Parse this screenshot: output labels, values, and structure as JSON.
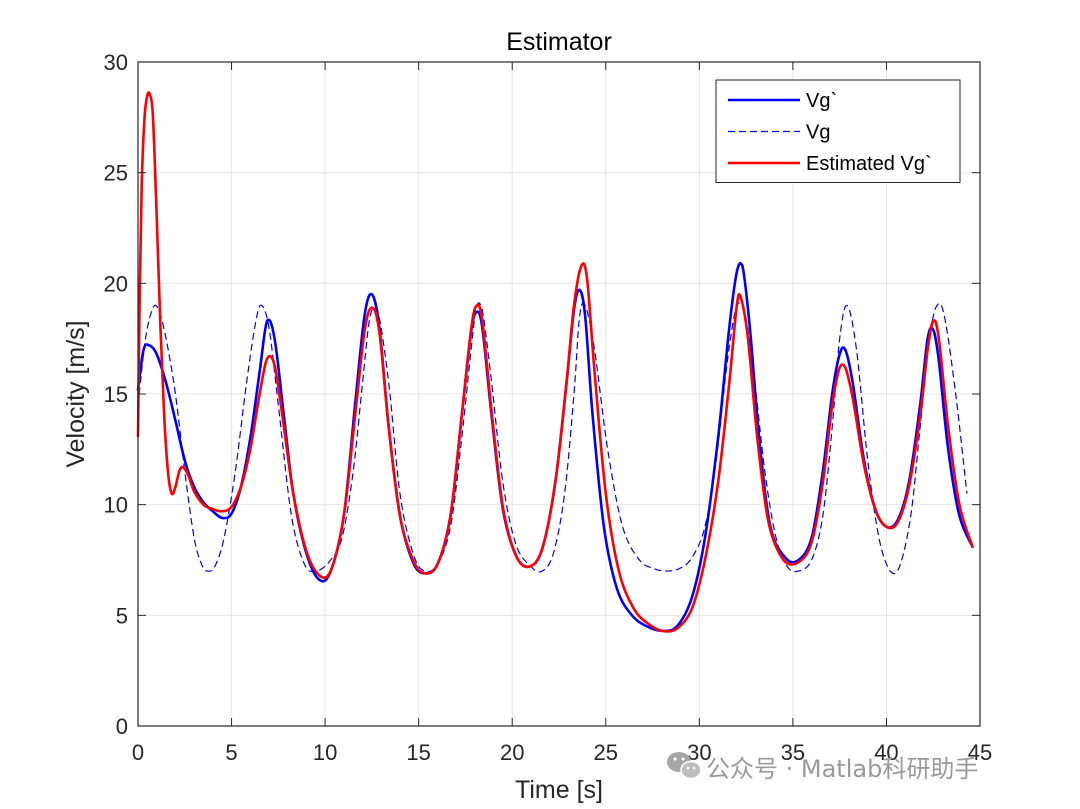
{
  "chart_data": {
    "type": "line",
    "title": "Estimator",
    "xlabel": "Time [s]",
    "ylabel": "Velocity [m/s]",
    "xlim": [
      0,
      45
    ],
    "ylim": [
      0,
      30
    ],
    "xticks": [
      0,
      5,
      10,
      15,
      20,
      25,
      30,
      35,
      40,
      45
    ],
    "yticks": [
      0,
      5,
      10,
      15,
      20,
      25,
      30
    ],
    "grid": true,
    "legend_position": "top-right",
    "series": [
      {
        "name": "Vg`",
        "color": "#0000ff",
        "style": "solid",
        "x": [
          0,
          0.3,
          0.6,
          1,
          1.5,
          2,
          2.5,
          3,
          3.5,
          4,
          4.5,
          5,
          5.5,
          6,
          6.5,
          6.9,
          7.3,
          7.8,
          8.3,
          9,
          9.7,
          10.3,
          11,
          11.6,
          12.1,
          12.5,
          12.9,
          13.4,
          14,
          14.7,
          15.3,
          16,
          16.7,
          17.3,
          17.8,
          18.1,
          18.4,
          18.9,
          19.5,
          20.2,
          20.9,
          21.6,
          22.3,
          22.9,
          23.3,
          23.6,
          23.9,
          24.3,
          24.9,
          25.6,
          26.4,
          27.2,
          28.0,
          28.8,
          29.6,
          30.3,
          31.0,
          31.6,
          32.0,
          32.3,
          32.7,
          33.2,
          33.8,
          34.6,
          35.3,
          36.0,
          36.6,
          37.1,
          37.5,
          37.8,
          38.2,
          38.8,
          39.4,
          40.0,
          40.6,
          41.2,
          41.8,
          42.2,
          42.5,
          42.8,
          43.3,
          43.9,
          44.6
        ],
        "values": [
          15.2,
          17.0,
          17.2,
          16.8,
          15.5,
          13.8,
          12.0,
          10.8,
          10.1,
          9.7,
          9.4,
          9.6,
          10.8,
          13.0,
          16.0,
          18.3,
          17.5,
          14.0,
          10.5,
          7.8,
          6.6,
          7.0,
          9.5,
          14.5,
          18.5,
          19.5,
          18.0,
          13.5,
          9.5,
          7.4,
          6.9,
          7.3,
          9.5,
          14.0,
          17.8,
          18.7,
          18.0,
          14.0,
          9.8,
          7.7,
          7.2,
          8.0,
          11.0,
          15.5,
          18.8,
          19.7,
          18.5,
          14.0,
          9.0,
          6.2,
          5.0,
          4.5,
          4.3,
          4.5,
          5.8,
          8.5,
          13.0,
          18.0,
          20.5,
          20.8,
          18.0,
          13.0,
          9.0,
          7.6,
          7.5,
          8.5,
          11.5,
          15.0,
          16.8,
          17.0,
          15.5,
          12.0,
          9.8,
          9.0,
          9.3,
          11.0,
          14.5,
          17.5,
          17.9,
          16.5,
          12.5,
          9.5,
          8.1
        ]
      },
      {
        "name": "Vg",
        "color": "#0000ff",
        "style": "dashed",
        "x": [
          0,
          0.4,
          0.8,
          1.1,
          1.5,
          2.0,
          2.5,
          3.0,
          3.4,
          3.7,
          4.1,
          4.6,
          5.2,
          5.8,
          6.3,
          6.6,
          7.0,
          7.5,
          8.2,
          8.9,
          9.5,
          10.2,
          10.9,
          11.5,
          12.0,
          12.4,
          12.8,
          13.4,
          14.0,
          14.7,
          15.3,
          16.0,
          16.7,
          17.3,
          17.8,
          18.1,
          18.4,
          18.9,
          19.5,
          20.2,
          21.0,
          21.6,
          22.2,
          22.8,
          23.3,
          23.6,
          23.9,
          24.4,
          25.1,
          25.9,
          26.8,
          27.6,
          28.2,
          28.9,
          29.6,
          30.3,
          30.9,
          31.5,
          32.0,
          32.4,
          32.9,
          33.5,
          34.1,
          34.7,
          35.3,
          36.0,
          36.6,
          37.1,
          37.5,
          37.9,
          38.4,
          39.0,
          39.6,
          40.2,
          40.7,
          41.3,
          41.8,
          42.3,
          42.7,
          43.1,
          43.7,
          44.3
        ],
        "values": [
          14.5,
          17.5,
          18.9,
          18.8,
          17.5,
          15.0,
          11.5,
          8.5,
          7.3,
          7.0,
          7.2,
          8.5,
          11.5,
          15.5,
          18.3,
          19.0,
          18.0,
          14.5,
          9.5,
          7.3,
          7.0,
          7.4,
          8.5,
          11.5,
          15.5,
          18.5,
          18.8,
          15.5,
          10.5,
          7.8,
          7.0,
          7.3,
          9.0,
          13.0,
          17.0,
          19.0,
          18.8,
          15.5,
          11.0,
          8.2,
          7.2,
          7.0,
          7.8,
          10.5,
          15.0,
          18.5,
          19.0,
          17.0,
          12.5,
          9.0,
          7.5,
          7.1,
          7.0,
          7.1,
          7.6,
          9.0,
          12.0,
          16.5,
          19.0,
          18.8,
          16.0,
          11.5,
          8.5,
          7.2,
          7.0,
          7.5,
          9.5,
          13.5,
          17.5,
          19.0,
          17.0,
          12.0,
          8.5,
          7.0,
          7.2,
          9.5,
          13.5,
          17.5,
          19.0,
          18.5,
          15.0,
          10.5
        ]
      },
      {
        "name": "Estimated Vg`",
        "color": "#ff0000",
        "style": "solid",
        "x": [
          0,
          0.1,
          0.2,
          0.35,
          0.5,
          0.65,
          0.8,
          1.0,
          1.2,
          1.4,
          1.6,
          1.8,
          2.0,
          2.2,
          2.4,
          2.7,
          3.0,
          3.5,
          4.0,
          4.5,
          5.0,
          5.5,
          6.0,
          6.5,
          6.9,
          7.3,
          7.8,
          8.3,
          9.0,
          9.7,
          10.3,
          11.0,
          11.6,
          12.1,
          12.5,
          12.9,
          13.4,
          14.0,
          14.7,
          15.3,
          16.0,
          16.7,
          17.3,
          17.8,
          18.1,
          18.4,
          18.9,
          19.5,
          20.2,
          20.9,
          21.6,
          22.3,
          22.9,
          23.3,
          23.7,
          24.0,
          24.4,
          25.0,
          25.7,
          26.5,
          27.3,
          28.0,
          28.8,
          29.6,
          30.3,
          31.0,
          31.6,
          32.0,
          32.2,
          32.6,
          33.1,
          33.7,
          34.5,
          35.3,
          36.0,
          36.6,
          37.1,
          37.5,
          37.8,
          38.2,
          38.8,
          39.4,
          40.0,
          40.6,
          41.2,
          41.8,
          42.2,
          42.5,
          42.8,
          43.3,
          43.9,
          44.6
        ],
        "values": [
          13.1,
          20.0,
          24.5,
          27.5,
          28.5,
          28.5,
          27.5,
          23.0,
          18.0,
          14.0,
          11.5,
          10.5,
          10.8,
          11.5,
          11.7,
          11.3,
          10.6,
          10.0,
          9.8,
          9.7,
          9.9,
          10.8,
          12.5,
          15.0,
          16.6,
          16.3,
          13.5,
          10.5,
          7.9,
          6.8,
          7.0,
          9.5,
          14.0,
          17.8,
          18.9,
          17.8,
          13.5,
          9.5,
          7.5,
          6.9,
          7.3,
          9.5,
          14.0,
          17.9,
          19.0,
          18.3,
          14.2,
          9.9,
          7.7,
          7.2,
          8.0,
          11.0,
          15.5,
          19.0,
          20.8,
          20.2,
          16.0,
          10.5,
          7.0,
          5.3,
          4.6,
          4.3,
          4.4,
          5.3,
          7.5,
          11.0,
          15.5,
          19.0,
          19.4,
          17.5,
          13.0,
          9.2,
          7.5,
          7.4,
          8.3,
          11.0,
          14.5,
          16.2,
          16.2,
          14.8,
          11.8,
          9.8,
          9.0,
          9.2,
          10.8,
          14.0,
          17.0,
          18.3,
          17.5,
          13.5,
          10.0,
          8.1
        ]
      }
    ]
  },
  "watermark": {
    "text": "公众号 · Matlab科研助手",
    "icon": "wechat-icon"
  }
}
